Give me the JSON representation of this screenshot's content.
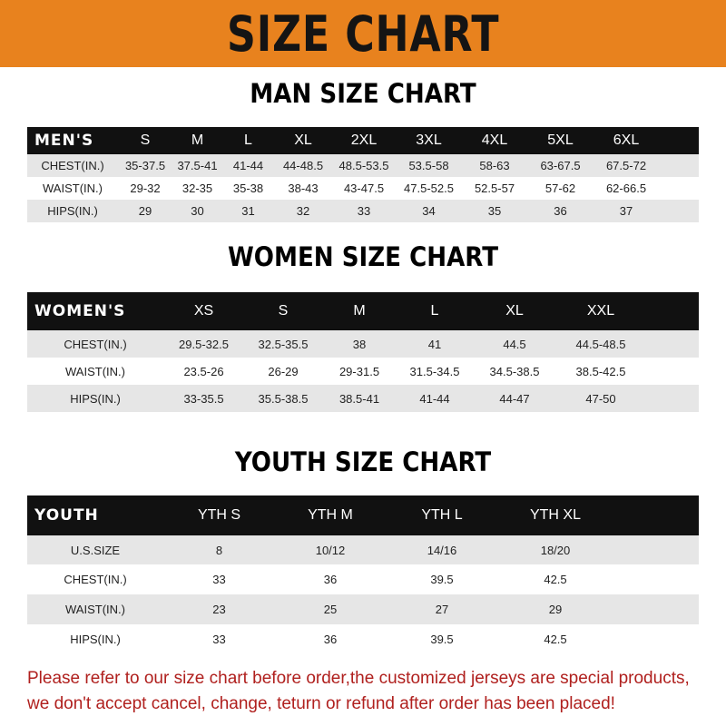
{
  "title": "SIZE CHART",
  "colors": {
    "banner": "#e8821e",
    "header_row": "#111111",
    "footer_text": "#b0201e"
  },
  "men": {
    "title": "MAN SIZE CHART",
    "header": [
      "MEN'S",
      "S",
      "M",
      "L",
      "XL",
      "2XL",
      "3XL",
      "4XL",
      "5XL",
      "6XL"
    ],
    "rows": [
      [
        "CHEST(IN.)",
        "35-37.5",
        "37.5-41",
        "41-44",
        "44-48.5",
        "48.5-53.5",
        "53.5-58",
        "58-63",
        "63-67.5",
        "67.5-72"
      ],
      [
        "WAIST(IN.)",
        "29-32",
        "32-35",
        "35-38",
        "38-43",
        "43-47.5",
        "47.5-52.5",
        "52.5-57",
        "57-62",
        "62-66.5"
      ],
      [
        "HIPS(IN.)",
        "29",
        "30",
        "31",
        "32",
        "33",
        "34",
        "35",
        "36",
        "37"
      ]
    ]
  },
  "women": {
    "title": "WOMEN SIZE CHART",
    "header": [
      "WOMEN'S",
      "XS",
      "S",
      "M",
      "L",
      "XL",
      "XXL"
    ],
    "rows": [
      [
        "CHEST(IN.)",
        "29.5-32.5",
        "32.5-35.5",
        "38",
        "41",
        "44.5",
        "44.5-48.5"
      ],
      [
        "WAIST(IN.)",
        "23.5-26",
        "26-29",
        "29-31.5",
        "31.5-34.5",
        "34.5-38.5",
        "38.5-42.5"
      ],
      [
        "HIPS(IN.)",
        "33-35.5",
        "35.5-38.5",
        "38.5-41",
        "41-44",
        "44-47",
        "47-50"
      ]
    ]
  },
  "youth": {
    "title": "YOUTH SIZE CHART",
    "header": [
      "YOUTH",
      "YTH S",
      "YTH M",
      "YTH L",
      "YTH XL"
    ],
    "rows": [
      [
        "U.S.SIZE",
        "8",
        "10/12",
        "14/16",
        "18/20"
      ],
      [
        "CHEST(IN.)",
        "33",
        "36",
        "39.5",
        "42.5"
      ],
      [
        "WAIST(IN.)",
        "23",
        "25",
        "27",
        "29"
      ],
      [
        "HIPS(IN.)",
        "33",
        "36",
        "39.5",
        "42.5"
      ]
    ]
  },
  "footer": {
    "line1": "Please refer to our size chart before order,the customized jerseys are special products,",
    "line2": "we don't accept cancel, change, teturn or refund after order has been placed!"
  }
}
